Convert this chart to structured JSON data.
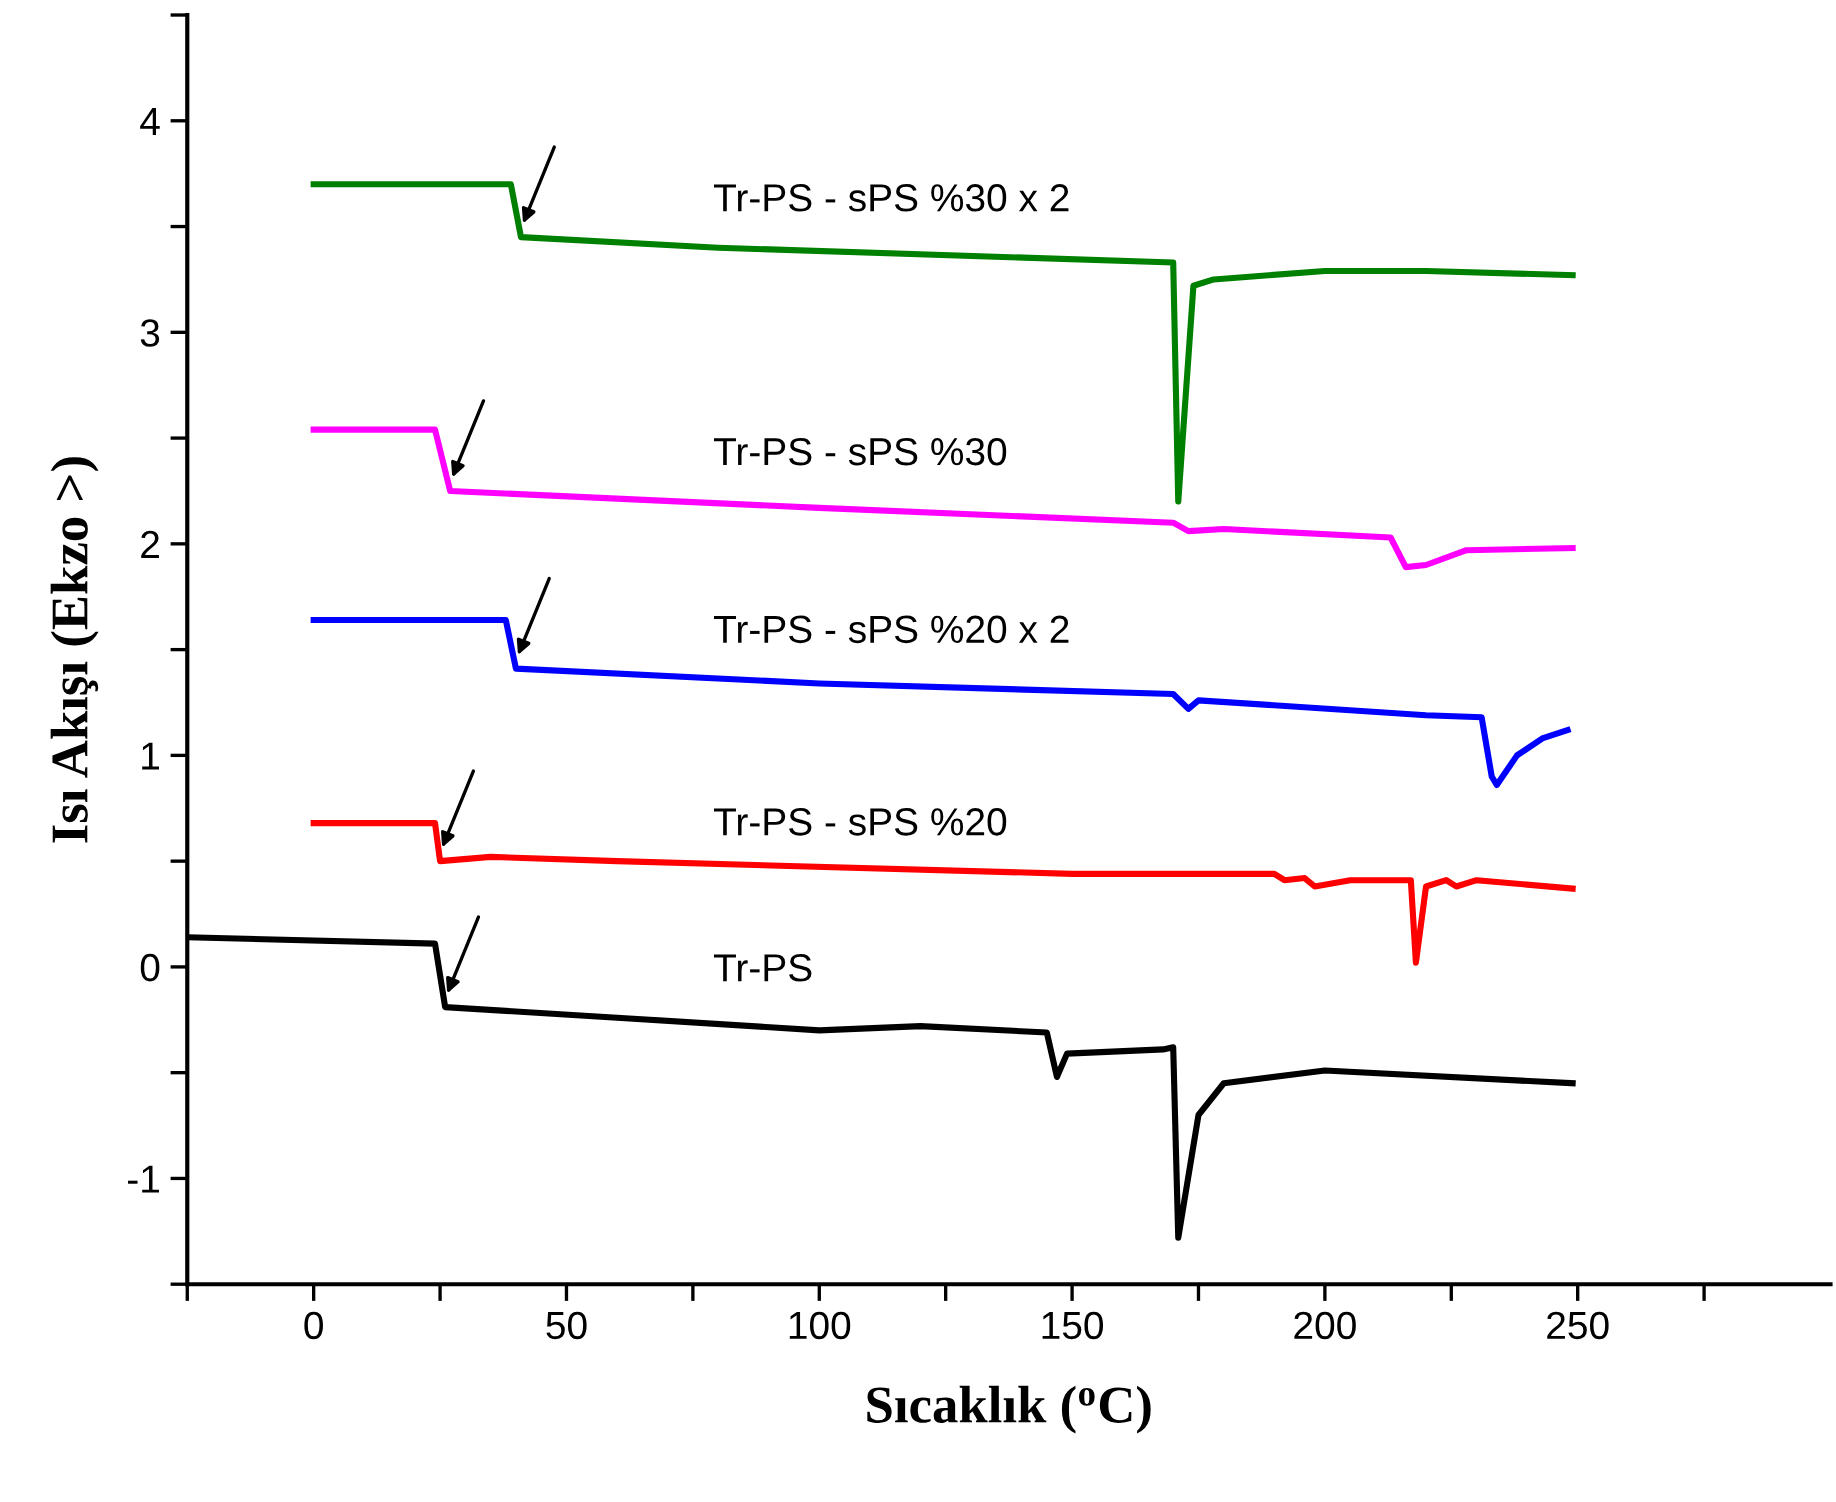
{
  "chart_data": {
    "type": "line",
    "xlabel": "Sıcaklık ($^{o}$C)",
    "ylabel": "Isı Akışı (Ekzo >)",
    "xlim": [
      -25,
      300
    ],
    "ylim": [
      -1.5,
      4.5
    ],
    "xticks": [
      {
        "value": -25,
        "label": null
      },
      0,
      {
        "value": 25,
        "label": null
      },
      50,
      {
        "value": 75,
        "label": null
      },
      100,
      {
        "value": 125,
        "label": null
      },
      150,
      {
        "value": 175,
        "label": null
      },
      200,
      {
        "value": 225,
        "label": null
      },
      250,
      {
        "value": 275,
        "label": null
      }
    ],
    "yticks": [
      {
        "value": -1.5,
        "label": null
      },
      -1,
      {
        "value": -0.5,
        "label": null
      },
      0,
      {
        "value": 0.5,
        "label": null
      },
      1,
      {
        "value": 1.5,
        "label": null
      },
      2,
      {
        "value": 2.5,
        "label": null
      },
      3,
      {
        "value": 3.5,
        "label": null
      },
      4,
      {
        "value": 4.5,
        "label": null
      }
    ],
    "grid": false,
    "legend": false,
    "marker": "none",
    "line_style": "solid",
    "series": [
      {
        "name": "Tr-PS - sPS %30 x 2",
        "color": "#008000",
        "x": [
          0,
          39,
          41,
          80,
          170,
          171,
          174,
          178,
          200,
          220,
          249
        ],
        "values": [
          3.7,
          3.7,
          3.45,
          3.4,
          3.33,
          2.2,
          3.22,
          3.25,
          3.29,
          3.29,
          3.27
        ]
      },
      {
        "name": "Tr-PS - sPS %30",
        "color": "#ff00ff",
        "x": [
          0,
          24,
          27,
          100,
          170,
          173,
          180,
          213,
          216,
          220,
          228,
          249
        ],
        "values": [
          2.54,
          2.54,
          2.25,
          2.17,
          2.1,
          2.06,
          2.07,
          2.03,
          1.89,
          1.9,
          1.97,
          1.98
        ]
      },
      {
        "name": "Tr-PS - sPS %20 x 2",
        "color": "#0000ff",
        "x": [
          0,
          38,
          40,
          100,
          170,
          173,
          175,
          220,
          231,
          233,
          234,
          238,
          243,
          248
        ],
        "values": [
          1.64,
          1.64,
          1.41,
          1.34,
          1.29,
          1.22,
          1.26,
          1.19,
          1.18,
          0.9,
          0.86,
          1.0,
          1.08,
          1.12
        ]
      },
      {
        "name": "Tr-PS - sPS %20",
        "color": "#ff0000",
        "x": [
          0,
          24,
          25,
          35,
          60,
          150,
          190,
          192,
          196,
          198,
          205,
          217,
          218,
          220,
          224,
          226,
          230,
          249
        ],
        "values": [
          0.68,
          0.68,
          0.5,
          0.52,
          0.5,
          0.44,
          0.44,
          0.41,
          0.42,
          0.38,
          0.41,
          0.41,
          0.02,
          0.38,
          0.41,
          0.38,
          0.41,
          0.37
        ]
      },
      {
        "name": "Tr-PS",
        "color": "#000000",
        "x": [
          -25,
          24,
          26,
          60,
          100,
          120,
          145,
          147,
          149,
          168,
          170,
          171,
          175,
          180,
          200,
          249
        ],
        "values": [
          0.14,
          0.11,
          -0.19,
          -0.24,
          -0.3,
          -0.28,
          -0.31,
          -0.52,
          -0.41,
          -0.39,
          -0.38,
          -1.28,
          -0.7,
          -0.55,
          -0.49,
          -0.55
        ]
      }
    ]
  }
}
